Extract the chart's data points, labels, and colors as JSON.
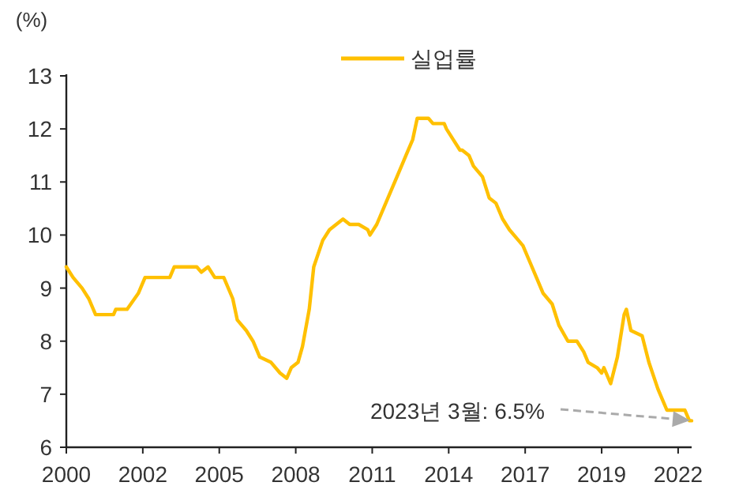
{
  "chart_data": {
    "type": "line",
    "ylabel": "(%)",
    "legend": "top",
    "x": [
      "2000-01",
      "2000-04",
      "2000-08",
      "2000-11",
      "2001-02",
      "2001-10",
      "2001-11",
      "2002-04",
      "2002-09",
      "2002-12",
      "2003-11",
      "2004-01",
      "2004-11",
      "2005-01",
      "2005-04",
      "2005-07",
      "2005-11",
      "2006-03",
      "2006-05",
      "2006-09",
      "2006-12",
      "2007-03",
      "2007-08",
      "2007-12",
      "2008-03",
      "2008-05",
      "2008-08",
      "2008-10",
      "2009-01",
      "2009-03",
      "2009-07",
      "2009-10",
      "2010-04",
      "2010-07",
      "2010-11",
      "2011-03",
      "2011-04",
      "2011-07",
      "2011-10",
      "2012-04",
      "2012-08",
      "2012-11",
      "2013-01",
      "2013-06",
      "2013-08",
      "2014-01",
      "2014-02",
      "2014-05",
      "2014-08",
      "2014-09",
      "2014-12",
      "2015-02",
      "2015-06",
      "2015-09",
      "2015-12",
      "2016-03",
      "2016-06",
      "2016-10",
      "2016-12",
      "2017-03",
      "2017-06",
      "2017-09",
      "2018-01",
      "2018-04",
      "2018-08",
      "2018-12",
      "2019-03",
      "2019-05",
      "2019-09",
      "2019-11",
      "2019-12",
      "2020-03",
      "2020-06",
      "2020-09",
      "2020-10",
      "2020-12",
      "2021-05",
      "2021-08",
      "2021-12",
      "2022-04",
      "2022-06",
      "2022-12",
      "2023-02",
      "2023-03"
    ],
    "series": [
      {
        "name": "실업률",
        "color": "#ffc000",
        "values": [
          9.4,
          9.2,
          9.0,
          8.8,
          8.5,
          8.5,
          8.6,
          8.6,
          8.9,
          9.2,
          9.2,
          9.4,
          9.4,
          9.3,
          9.4,
          9.2,
          9.2,
          8.8,
          8.4,
          8.2,
          8.0,
          7.7,
          7.6,
          7.4,
          7.3,
          7.5,
          7.6,
          7.9,
          8.6,
          9.4,
          9.9,
          10.1,
          10.3,
          10.2,
          10.2,
          10.1,
          10.0,
          10.2,
          10.5,
          11.1,
          11.5,
          11.8,
          12.2,
          12.2,
          12.1,
          12.1,
          12.0,
          11.8,
          11.6,
          11.6,
          11.5,
          11.3,
          11.1,
          10.7,
          10.6,
          10.3,
          10.1,
          9.9,
          9.8,
          9.5,
          9.2,
          8.9,
          8.7,
          8.3,
          8.0,
          8.0,
          7.8,
          7.6,
          7.5,
          7.4,
          7.5,
          7.2,
          7.7,
          8.5,
          8.6,
          8.2,
          8.1,
          7.6,
          7.1,
          6.7,
          6.7,
          6.7,
          6.5,
          6.5
        ]
      }
    ],
    "xlim": [
      "2000-01",
      "2023-03"
    ],
    "xticks": [
      {
        "value": "2000-01",
        "label": "2000"
      },
      {
        "value": "2002-11",
        "label": "2002"
      },
      {
        "value": "2005-09",
        "label": "2005"
      },
      {
        "value": "2008-07",
        "label": "2008"
      },
      {
        "value": "2011-05",
        "label": "2011"
      },
      {
        "value": "2014-03",
        "label": "2014"
      },
      {
        "value": "2017-01",
        "label": "2017"
      },
      {
        "value": "2019-11",
        "label": "2019"
      },
      {
        "value": "2022-09",
        "label": "2022"
      }
    ],
    "ylim": [
      6,
      13
    ],
    "yticks": [
      6,
      7,
      8,
      9,
      10,
      11,
      12,
      13
    ],
    "annotations": [
      "2023년 3월:  6.5%"
    ]
  }
}
